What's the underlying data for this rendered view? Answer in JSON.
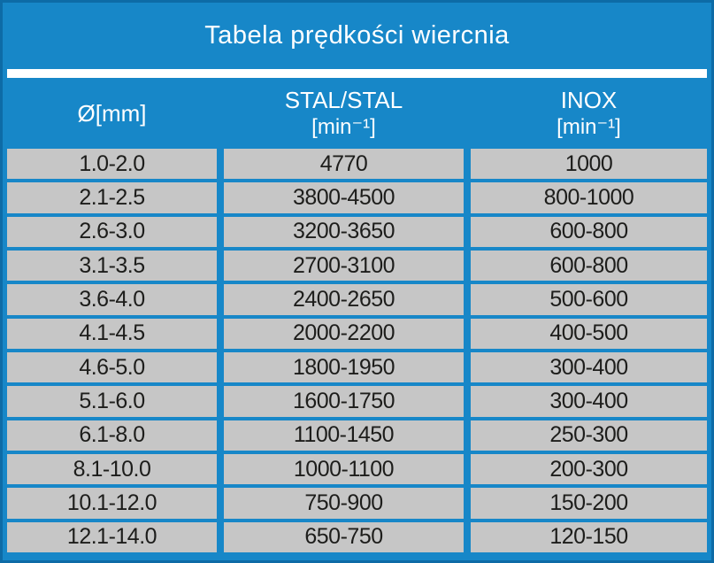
{
  "title": "Tabela prędkości wiercnia",
  "colors": {
    "background": "#1787c8",
    "border": "#0d6ba6",
    "cell": "#c6c6c6",
    "text_dark": "#1d1d1b",
    "text_light": "#ffffff"
  },
  "columns": [
    {
      "label": "Ø[mm]",
      "unit": ""
    },
    {
      "label": "STAL/STAL",
      "unit": "[min⁻¹]"
    },
    {
      "label": "INOX",
      "unit": "[min⁻¹]"
    }
  ],
  "chart_data": {
    "type": "table",
    "title": "Tabela prędkości wiercnia",
    "columns": [
      "Ø[mm]",
      "STAL/STAL [min⁻¹]",
      "INOX [min⁻¹]"
    ],
    "rows": [
      [
        "1.0-2.0",
        "4770",
        "1000"
      ],
      [
        "2.1-2.5",
        "3800-4500",
        "800-1000"
      ],
      [
        "2.6-3.0",
        "3200-3650",
        "600-800"
      ],
      [
        "3.1-3.5",
        "2700-3100",
        "600-800"
      ],
      [
        "3.6-4.0",
        "2400-2650",
        "500-600"
      ],
      [
        "4.1-4.5",
        "2000-2200",
        "400-500"
      ],
      [
        "4.6-5.0",
        "1800-1950",
        "300-400"
      ],
      [
        "5.1-6.0",
        "1600-1750",
        "300-400"
      ],
      [
        "6.1-8.0",
        "1100-1450",
        "250-300"
      ],
      [
        "8.1-10.0",
        "1000-1100",
        "200-300"
      ],
      [
        "10.1-12.0",
        "750-900",
        "150-200"
      ],
      [
        "12.1-14.0",
        "650-750",
        "120-150"
      ]
    ]
  }
}
